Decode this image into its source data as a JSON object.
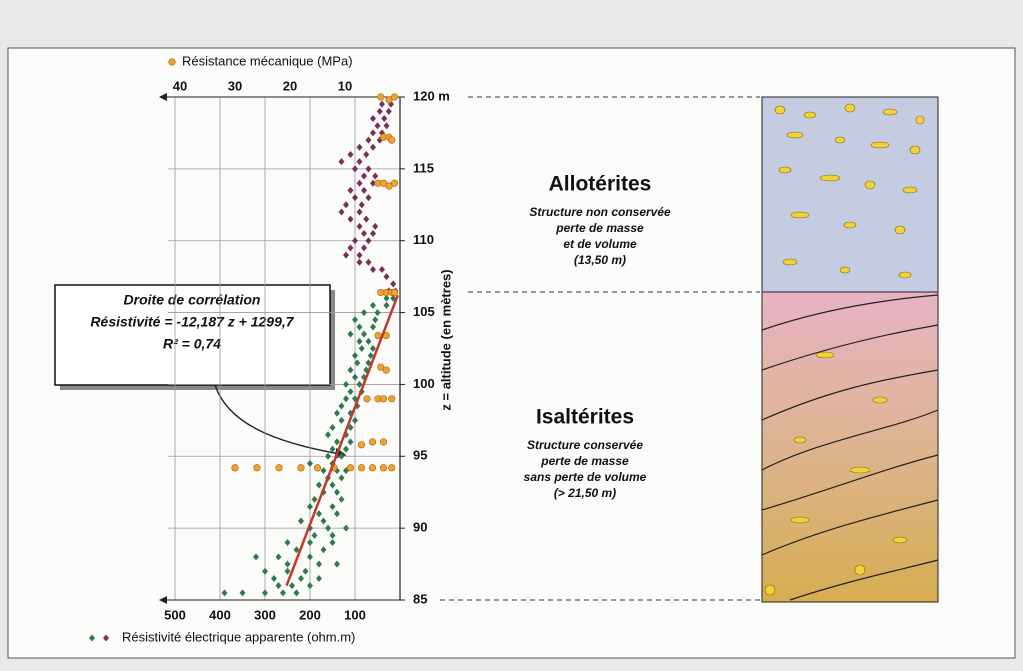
{
  "chart_data": {
    "type": "scatter",
    "xlim": [
      500,
      0
    ],
    "xticks": [
      500,
      400,
      300,
      200,
      100
    ],
    "x2lim": [
      40,
      0
    ],
    "x2ticks": [
      40,
      30,
      20,
      10
    ],
    "ylim": [
      85,
      120
    ],
    "yticks": [
      {
        "value": 120,
        "label": "120 m"
      },
      115,
      110,
      105,
      100,
      95,
      90,
      85
    ],
    "ylabel": "z = altitude (en mètres)",
    "grid": true,
    "series": [
      {
        "name": "Résistivité électrique apparente (ohm.m)",
        "color": "#2f7a4f",
        "x": [
          390,
          350,
          300,
          260,
          230,
          270,
          240,
          200,
          280,
          220,
          180,
          300,
          250,
          210,
          250,
          180,
          140,
          320,
          270,
          200,
          230,
          170,
          250,
          200,
          150,
          190,
          150,
          200,
          160,
          120,
          220,
          170,
          180,
          140,
          200,
          150,
          190,
          130,
          170,
          140,
          180,
          150,
          160,
          130,
          170,
          140,
          120,
          200,
          150,
          160,
          130,
          150,
          120,
          140,
          110,
          160,
          120,
          150,
          110,
          130,
          100,
          140,
          110,
          130,
          95,
          120,
          100,
          110,
          85,
          120,
          90,
          100,
          80,
          110,
          75,
          95,
          70,
          100,
          65,
          85,
          60,
          90,
          70,
          110,
          80,
          90,
          60,
          100,
          55,
          80,
          50,
          60,
          30,
          30,
          15
        ],
        "values": [
          85.5,
          85.5,
          85.5,
          85.5,
          85.5,
          86,
          86,
          86,
          86.5,
          86.5,
          86.5,
          87,
          87,
          87,
          87.5,
          87.5,
          87.5,
          88,
          88,
          88,
          88.5,
          88.5,
          89,
          89,
          89,
          89.5,
          89.5,
          90,
          90,
          90,
          90.5,
          90.5,
          91,
          91,
          91.5,
          91.5,
          92,
          92,
          92.5,
          92.5,
          93,
          93,
          93.5,
          93.5,
          94,
          94,
          94,
          94.5,
          94.5,
          95,
          95,
          95.5,
          95.5,
          96,
          96,
          96.5,
          96.5,
          97,
          97,
          97.5,
          97.5,
          98,
          98,
          98.5,
          98.5,
          99,
          99,
          99.5,
          99.5,
          100,
          100,
          100.5,
          100.5,
          101,
          101,
          101.5,
          101.5,
          102,
          102,
          102.5,
          102.5,
          103,
          103,
          103.5,
          103.5,
          104,
          104,
          104.5,
          104.5,
          105,
          105,
          105.5,
          105.5,
          106,
          106
        ]
      },
      {
        "color": "#7a2e5a",
        "x": [
          25,
          10,
          15,
          30,
          60,
          40,
          90,
          70,
          120,
          90,
          110,
          80,
          100,
          70,
          80,
          60,
          90,
          55,
          110,
          75,
          130,
          90,
          120,
          85,
          100,
          70,
          110,
          80,
          90,
          60,
          80,
          55,
          100,
          70,
          130,
          90,
          110,
          75,
          90,
          60,
          70,
          45,
          60,
          40,
          50,
          30,
          60,
          35,
          45,
          25,
          40,
          20
        ],
        "values": [
          106.5,
          106.5,
          107,
          107.5,
          108,
          108,
          108.5,
          108.5,
          109,
          109,
          109.5,
          109.5,
          110,
          110,
          110.5,
          110.5,
          111,
          111,
          111.5,
          111.5,
          112,
          112,
          112.5,
          112.5,
          113,
          113,
          113.5,
          113.5,
          114,
          114,
          114.5,
          114.5,
          115,
          115,
          115.5,
          115.5,
          116,
          116,
          116.5,
          116.5,
          117,
          117,
          117.5,
          117.5,
          118,
          118,
          118.5,
          118.5,
          119,
          119,
          119.5,
          119.5
        ]
      },
      {
        "name": "Résistance mécanique (MPa)",
        "color": "#f0a22e",
        "axis": "x2",
        "x": [
          3.5,
          2,
          1,
          3,
          2,
          1.5,
          4,
          3,
          1,
          2,
          2.5,
          1.5,
          1,
          3.5,
          4,
          2.5,
          3.5,
          2.5,
          6,
          4,
          1.5,
          3,
          7,
          5,
          3,
          30,
          26,
          22,
          18,
          15,
          12,
          9,
          7,
          5,
          3,
          1.5
        ],
        "values": [
          120,
          119.8,
          120,
          117.2,
          117.2,
          117,
          114,
          114,
          114,
          113.8,
          106.4,
          106.4,
          106.4,
          106.4,
          103.4,
          103.4,
          101.2,
          101,
          99,
          99,
          99,
          99,
          95.8,
          96,
          96,
          94.2,
          94.2,
          94.2,
          94.2,
          94.2,
          94.2,
          94.2,
          94.2,
          94.2,
          94.2,
          94.2
        ]
      }
    ],
    "fit": {
      "label": "Droite de corrélation",
      "equation": "Résistivité = -12,187 z + 1299,7",
      "r2": "R² = 0,74",
      "color": "#c0392b",
      "x": [
        252,
        5
      ],
      "values": [
        86,
        106.2
      ]
    }
  },
  "profile": {
    "layers": [
      {
        "name": "Allotérites",
        "lines": [
          "Structure non conservée",
          "perte de masse",
          "et de volume",
          "(13,50 m)"
        ]
      },
      {
        "name": "Isaltérites",
        "lines": [
          "Structure conservée",
          "perte de masse",
          "sans perte de volume",
          "(> 21,50 m)"
        ]
      }
    ]
  }
}
